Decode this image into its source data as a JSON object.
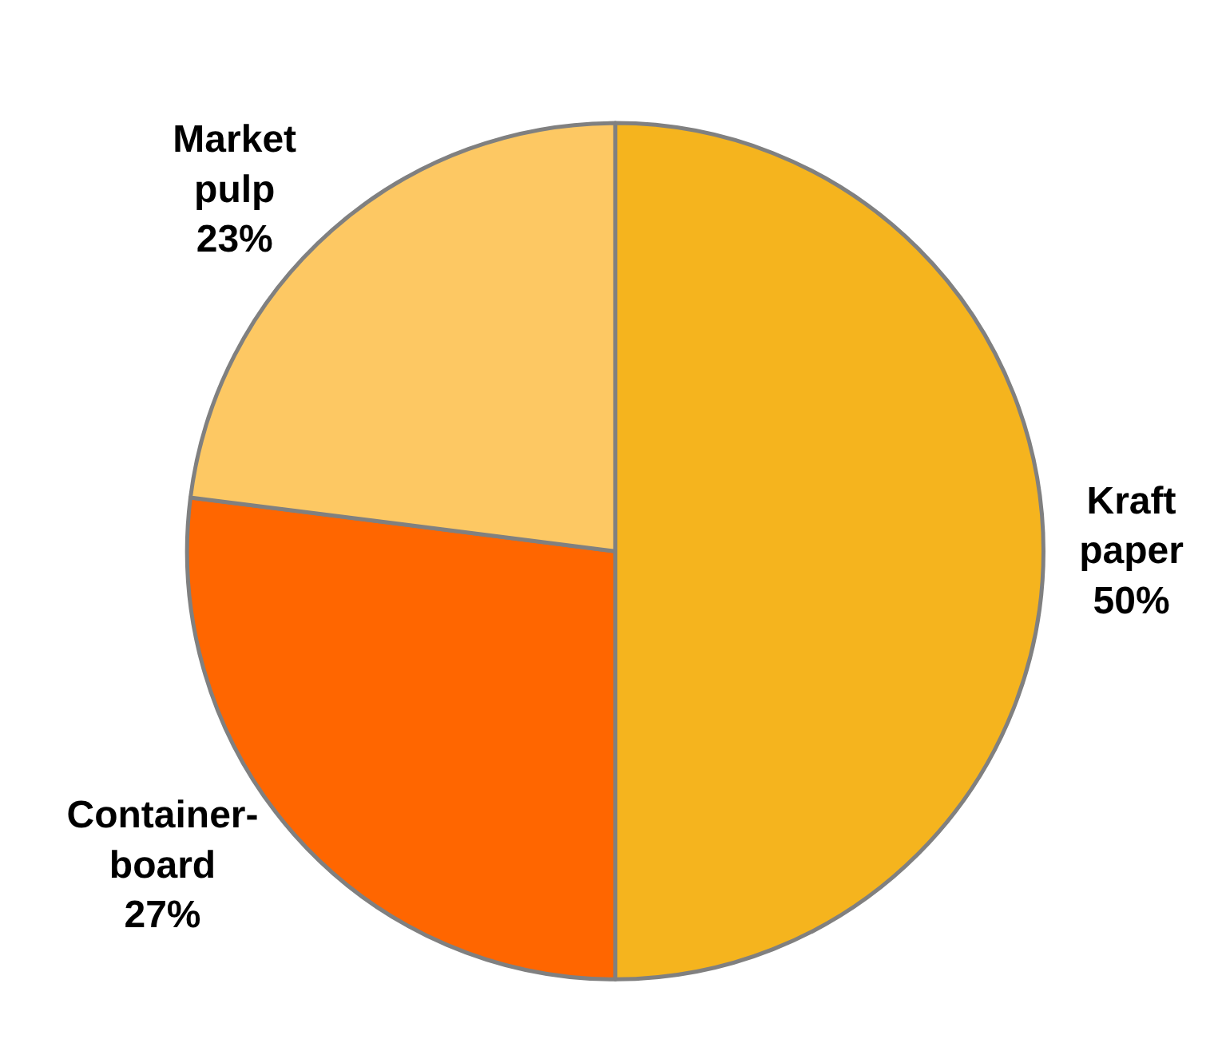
{
  "chart_data": {
    "type": "pie",
    "categories": [
      "Kraft paper",
      "Container-board",
      "Market pulp"
    ],
    "values": [
      50,
      27,
      23
    ],
    "colors": [
      "#f5b41e",
      "#ff6600",
      "#fdc863"
    ],
    "value_labels": [
      "50%",
      "27%",
      "23%"
    ],
    "legend": false
  }
}
